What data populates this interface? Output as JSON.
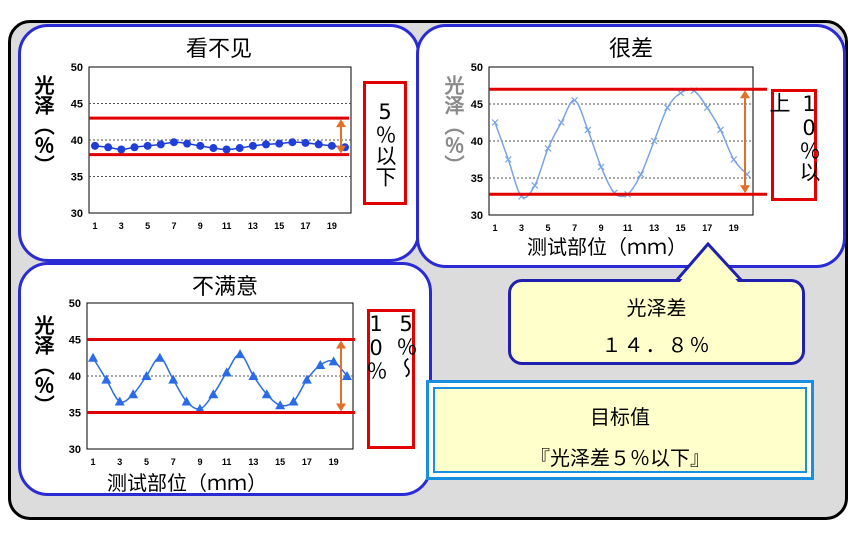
{
  "callout": {
    "label": "光泽差",
    "value": "１４．８％"
  },
  "target": {
    "title": "目标值",
    "value": "『光泽差５％以下』"
  },
  "chart_data": [
    {
      "type": "line",
      "title": "看不见",
      "ylabel": "光泽（％）",
      "xlabel": "",
      "ylim": [
        30,
        50
      ],
      "yticks": [
        30,
        35,
        40,
        45,
        50
      ],
      "xticks": [
        1,
        3,
        5,
        7,
        9,
        11,
        13,
        15,
        17,
        19
      ],
      "x": [
        1,
        2,
        3,
        4,
        5,
        6,
        7,
        8,
        9,
        10,
        11,
        12,
        13,
        14,
        15,
        16,
        17,
        18,
        19,
        20
      ],
      "series": [
        {
          "values": [
            39.2,
            39.0,
            38.7,
            39.0,
            39.2,
            39.4,
            39.7,
            39.5,
            39.2,
            38.9,
            38.7,
            38.9,
            39.2,
            39.4,
            39.5,
            39.7,
            39.6,
            39.4,
            39.2,
            39.0
          ],
          "color": "#1f3fd8",
          "marker": "circle"
        }
      ],
      "limit_lines": [
        43,
        38
      ],
      "range_label": "5％以下",
      "grid": true
    },
    {
      "type": "line",
      "title": "很差",
      "ylabel": "光泽（％）",
      "xlabel": "测试部位（ｍｍ）",
      "ylim": [
        30,
        50
      ],
      "yticks": [
        30,
        35,
        40,
        45,
        50
      ],
      "xticks": [
        1,
        3,
        5,
        7,
        9,
        11,
        13,
        15,
        17,
        19
      ],
      "x": [
        1,
        2,
        3,
        4,
        5,
        6,
        7,
        8,
        9,
        10,
        11,
        12,
        13,
        14,
        15,
        16,
        17,
        18,
        19,
        20
      ],
      "series": [
        {
          "values": [
            42.5,
            37.5,
            32.5,
            34.0,
            39.0,
            42.5,
            45.5,
            41.5,
            36.5,
            33.0,
            32.8,
            35.5,
            40.0,
            44.5,
            46.5,
            46.8,
            44.5,
            41.5,
            37.5,
            35.5
          ],
          "color": "#7aa4e6",
          "marker": "x"
        }
      ],
      "limit_lines": [
        47,
        32.8
      ],
      "range_label": "10％以上",
      "grid": true
    },
    {
      "type": "line",
      "title": "不满意",
      "ylabel": "光泽（％）",
      "xlabel": "测试部位（ｍｍ）",
      "ylim": [
        30,
        50
      ],
      "yticks": [
        30,
        35,
        40,
        45,
        50
      ],
      "xticks": [
        1,
        3,
        5,
        7,
        9,
        11,
        13,
        15,
        17,
        19
      ],
      "x": [
        1,
        2,
        3,
        4,
        5,
        6,
        7,
        8,
        9,
        10,
        11,
        12,
        13,
        14,
        15,
        16,
        17,
        18,
        19,
        20
      ],
      "series": [
        {
          "values": [
            42.5,
            39.5,
            36.5,
            37.5,
            40.0,
            42.5,
            39.5,
            36.5,
            35.5,
            37.5,
            40.5,
            43.0,
            40.0,
            37.5,
            36.0,
            36.5,
            39.5,
            41.5,
            42.0,
            40.0
          ],
          "color": "#2a6ce8",
          "marker": "triangle"
        }
      ],
      "limit_lines": [
        45,
        35
      ],
      "range_label": "5％～10％",
      "grid": true
    }
  ]
}
